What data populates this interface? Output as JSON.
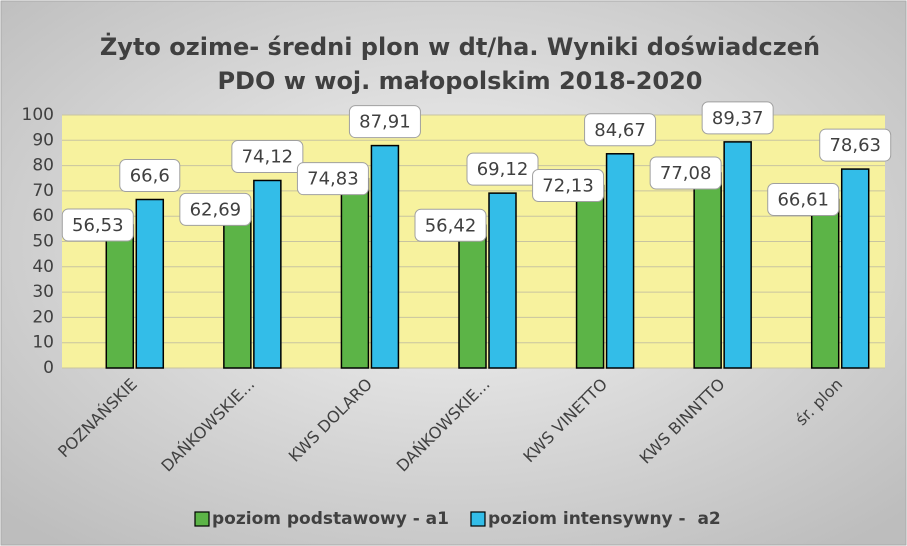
{
  "chart_data": {
    "type": "bar",
    "title": [
      "Żyto ozime- średni plon w dt/ha. Wyniki doświadczeń",
      "PDO w woj. małopolskim 2018-2020"
    ],
    "categories": [
      "POZNAŃSKIE",
      "DAŃKOWSKIE...",
      "KWS DOLARO",
      "DAŃKOWSKIE...",
      "KWS VINETTO",
      "KWS BINNTTO",
      "śr. plon"
    ],
    "series": [
      {
        "name": "poziom podstawowy - a1",
        "color": "#5cb447",
        "values": [
          56.53,
          62.69,
          74.83,
          56.42,
          72.13,
          77.08,
          66.61
        ],
        "value_labels": [
          "56,53",
          "62,69",
          "74,83",
          "56,42",
          "72,13",
          "77,08",
          "66,61"
        ]
      },
      {
        "name": "poziom intensywny -  a2",
        "color": "#33bde8",
        "values": [
          66.6,
          74.12,
          87.91,
          69.12,
          84.67,
          89.37,
          78.63
        ],
        "value_labels": [
          "66,6",
          "74,12",
          "87,91",
          "69,12",
          "84,67",
          "89,37",
          "78,63"
        ]
      }
    ],
    "ylim": [
      0,
      100
    ],
    "yticks": [
      0,
      10,
      20,
      30,
      40,
      50,
      60,
      70,
      80,
      90,
      100
    ],
    "grid": true,
    "legend": "bottom"
  }
}
